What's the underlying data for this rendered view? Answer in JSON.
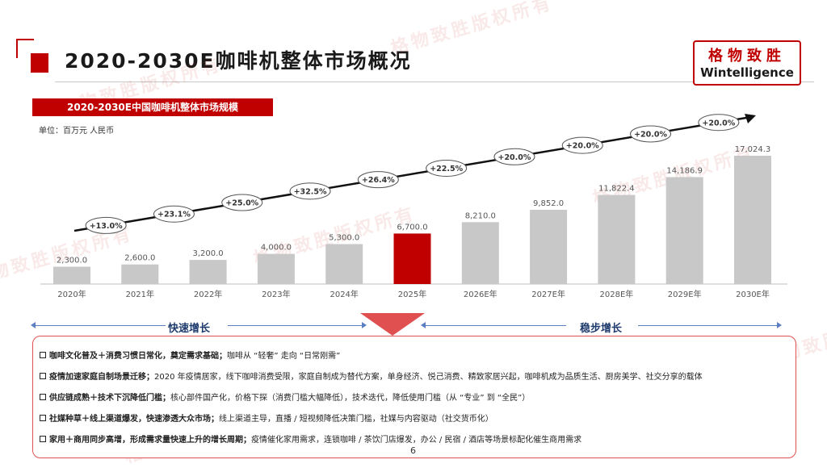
{
  "page": {
    "title": "2020-2030E咖啡机整体市场概况",
    "subtitle": "2020-2030E中国咖啡机整体市场规模",
    "unit": "单位：百万元 人民币",
    "page_number": "6",
    "logo_cn": "格物致胜",
    "logo_en": "Wintelligence",
    "watermark": "格物致胜版权所有"
  },
  "chart_data": {
    "type": "bar",
    "categories": [
      "2020年",
      "2021年",
      "2022年",
      "2023年",
      "2024年",
      "2025年",
      "2026E年",
      "2027E年",
      "2028E年",
      "2029E年",
      "2030E年"
    ],
    "values": [
      2300.0,
      2600.0,
      3200.0,
      4000.0,
      5300.0,
      6700.0,
      8210.0,
      9852.0,
      11822.4,
      14186.9,
      17024.3
    ],
    "value_labels": [
      "2,300.0",
      "2,600.0",
      "3,200.0",
      "4,000.0",
      "5,300.0",
      "6,700.0",
      "8,210.0",
      "9,852.0",
      "11,822.4",
      "14,186.9",
      "17,024.3"
    ],
    "growth_labels": [
      "+13.0%",
      "+23.1%",
      "+25.0%",
      "+32.5%",
      "+26.4%",
      "+22.5%",
      "+20.0%",
      "+20.0%",
      "+20.0%",
      "+20.0%"
    ],
    "highlight_index": 5,
    "ylim": [
      0,
      17024.3
    ],
    "grid": false,
    "colors": {
      "bar": "#c8c8c8",
      "highlight": "#c00000",
      "trend": "#111111"
    }
  },
  "phases": {
    "fast": "快速增长",
    "steady": "稳步增长"
  },
  "bullets": [
    {
      "head": "咖啡文化普及＋消费习惯日常化，奠定需求基础；",
      "body": "咖啡从 “轻奢” 走向 “日常刚需”"
    },
    {
      "head": "疫情加速家庭自制场景迁移；",
      "body": "2020 年疫情居家，线下咖啡消费受限，家庭自制成为替代方案，单身经济、悦己消费、精致家居兴起，咖啡机成为品质生活、厨房美学、社交分享的载体"
    },
    {
      "head": "供应链成熟＋技术下沉降低门槛；",
      "body": "核心部件国产化，价格下探（消费门槛大幅降低），技术迭代，降低使用门槛（从 “专业” 到 “全民”）"
    },
    {
      "head": "社媒种草＋线上渠道爆发，快速渗透大众市场；",
      "body": "线上渠道主导，直播 / 短视频降低决策门槛，社媒与内容驱动（社交货币化）"
    },
    {
      "head": "家用＋商用同步高增，形成需求量快速上升的增长周期；",
      "body": "疫情催化家用需求，连锁咖啡 / 茶饮门店爆发，办公 / 民宿 / 酒店等场景标配化催生商用需求"
    }
  ]
}
